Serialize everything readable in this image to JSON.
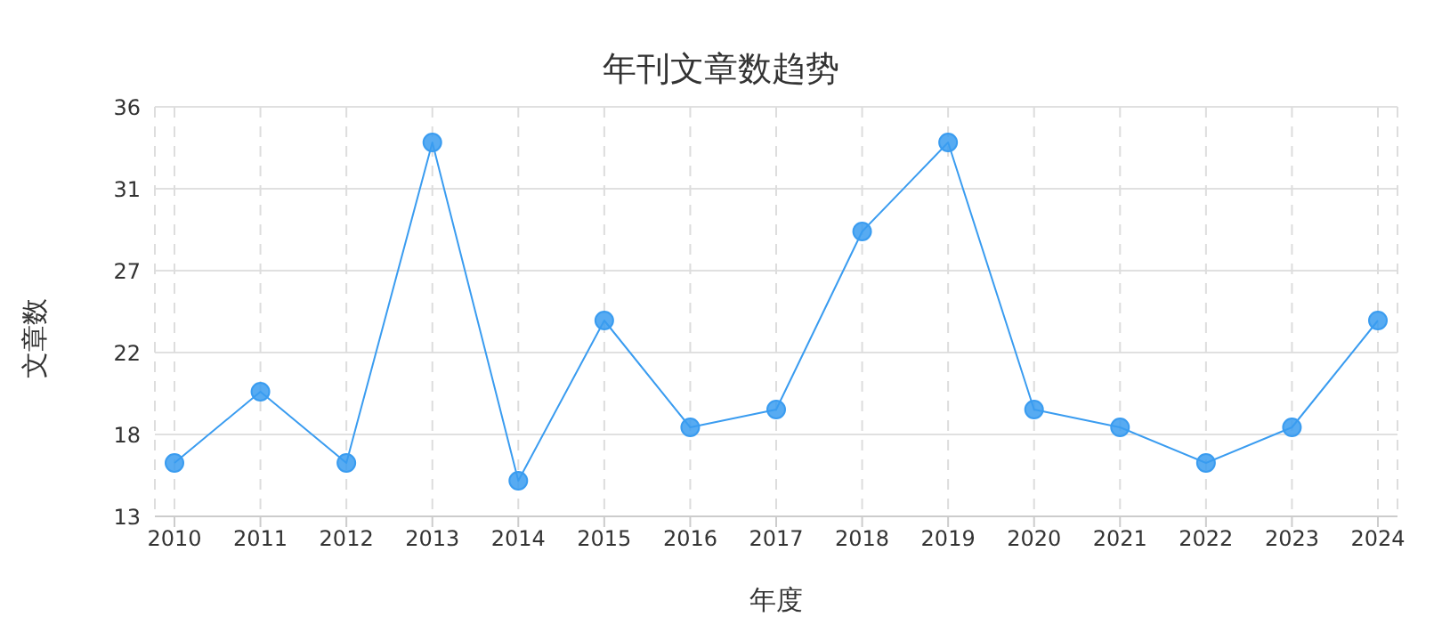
{
  "chart_data": {
    "type": "line",
    "title": "年刊文章数趋势",
    "xlabel": "年度",
    "ylabel": "文章数",
    "categories": [
      "2010",
      "2011",
      "2012",
      "2013",
      "2014",
      "2015",
      "2016",
      "2017",
      "2018",
      "2019",
      "2020",
      "2021",
      "2022",
      "2023",
      "2024"
    ],
    "series": [
      {
        "color": "#3a9cf0",
        "values": [
          16,
          20,
          16,
          34,
          15,
          24,
          18,
          19,
          29,
          34,
          19,
          18,
          16,
          18,
          24
        ]
      }
    ],
    "ylim": [
      13,
      36
    ],
    "yticks": [
      13,
      {
        "value": 17.6,
        "label": "18"
      },
      {
        "value": 22.2,
        "label": "22"
      },
      {
        "value": 26.8,
        "label": "27"
      },
      {
        "value": 31.4,
        "label": "31"
      },
      36
    ],
    "grid": true,
    "marker": "circle",
    "line_style": "solid"
  }
}
